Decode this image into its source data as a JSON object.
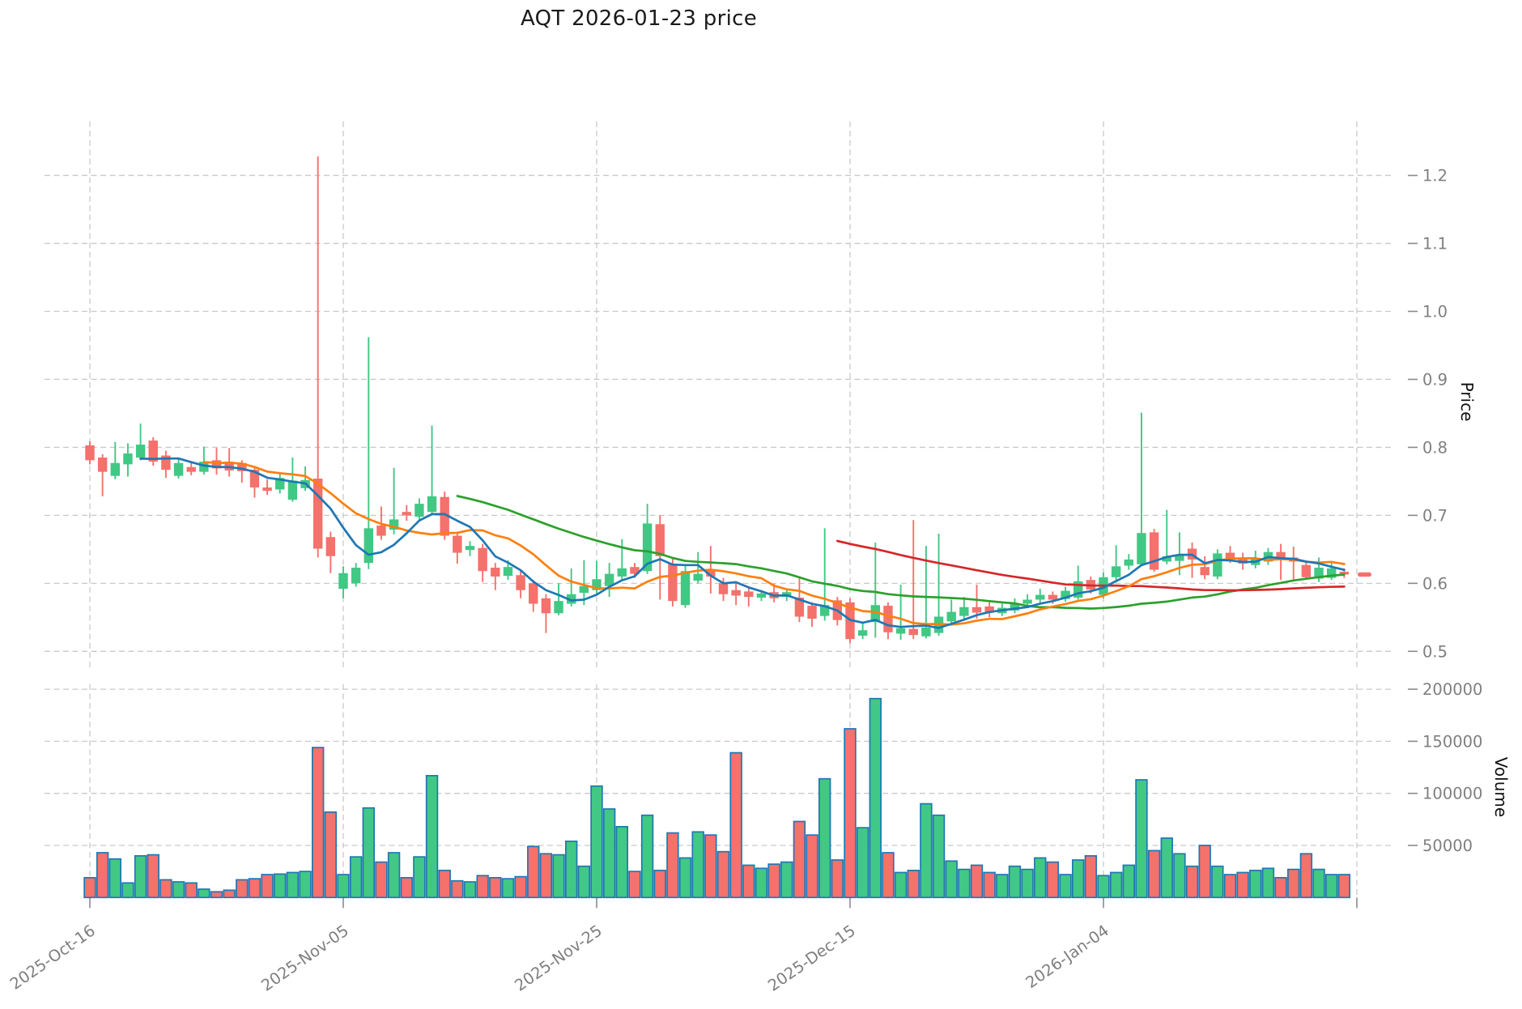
{
  "title": "AQT  2026-01-23  price",
  "chart_data": {
    "type": "candlestick",
    "subtype": "ohlc_with_volume_panel",
    "symbol": "AQT",
    "as_of_date": "2026-01-23",
    "start_date": "2025-10-16",
    "frequency": "daily",
    "x_tick_labels": [
      "2025-Oct-16",
      "2025-Nov-05",
      "2025-Nov-25",
      "2025-Dec-15",
      "2026-Jan-04"
    ],
    "x_tick_indices": [
      0,
      20,
      40,
      60,
      80
    ],
    "x_gridline_indices": [
      0,
      20,
      40,
      60,
      80,
      100
    ],
    "price_axis": {
      "label": "Price",
      "ticks": [
        0.5,
        0.6,
        0.7,
        0.8,
        0.9,
        1.0,
        1.1,
        1.2
      ],
      "tick_labels": [
        "0.5",
        "0.6",
        "0.7",
        "0.8",
        "0.9",
        "1.0",
        "1.1",
        "1.2"
      ],
      "range": [
        0.4765,
        1.279
      ],
      "grid": true
    },
    "volume_axis": {
      "label": "Volume",
      "ticks": [
        50000,
        100000,
        150000,
        200000
      ],
      "tick_labels": [
        "50000",
        "100000",
        "150000",
        "200000"
      ],
      "range": [
        0,
        204500
      ],
      "grid": true
    },
    "moving_averages": [
      {
        "name": "SMA30",
        "period": 30,
        "color": "#2ca02c"
      },
      {
        "name": "SMA60",
        "period": 60,
        "color": "#d62728"
      },
      {
        "name": "SMA10",
        "period": 10,
        "color": "#ff7f0e"
      },
      {
        "name": "SMA5",
        "period": 5,
        "color": "#1f77b4"
      }
    ],
    "last_price_marker": {
      "price": 0.613,
      "color": "#f4716c"
    },
    "colors": {
      "up": "#41c884",
      "down": "#f4716c",
      "volume_border": "#1f77b4",
      "grid": "#c9c9c9",
      "tick_text": "#7f7f7f",
      "title_text": "#1a1a1a"
    },
    "candles_schema": [
      "open",
      "high",
      "low",
      "close",
      "volume"
    ],
    "candles": [
      [
        0.803,
        0.809,
        0.775,
        0.781,
        19000
      ],
      [
        0.785,
        0.79,
        0.728,
        0.764,
        43000
      ],
      [
        0.758,
        0.808,
        0.753,
        0.777,
        37000
      ],
      [
        0.775,
        0.806,
        0.757,
        0.791,
        14000
      ],
      [
        0.785,
        0.835,
        0.781,
        0.804,
        40000
      ],
      [
        0.81,
        0.815,
        0.773,
        0.779,
        41000
      ],
      [
        0.788,
        0.795,
        0.755,
        0.767,
        17000
      ],
      [
        0.758,
        0.782,
        0.754,
        0.777,
        15000
      ],
      [
        0.771,
        0.778,
        0.759,
        0.764,
        14000
      ],
      [
        0.764,
        0.801,
        0.76,
        0.779,
        8000
      ],
      [
        0.781,
        0.799,
        0.76,
        0.769,
        5500
      ],
      [
        0.779,
        0.799,
        0.757,
        0.766,
        7000
      ],
      [
        0.777,
        0.781,
        0.748,
        0.765,
        17000
      ],
      [
        0.767,
        0.772,
        0.726,
        0.741,
        18000
      ],
      [
        0.741,
        0.753,
        0.73,
        0.736,
        22000
      ],
      [
        0.738,
        0.762,
        0.732,
        0.755,
        22500
      ],
      [
        0.723,
        0.785,
        0.72,
        0.751,
        24000
      ],
      [
        0.74,
        0.772,
        0.736,
        0.752,
        25000
      ],
      [
        0.754,
        1.228,
        0.638,
        0.651,
        144000
      ],
      [
        0.668,
        0.676,
        0.615,
        0.64,
        82000
      ],
      [
        0.592,
        0.625,
        0.578,
        0.615,
        22000
      ],
      [
        0.6,
        0.63,
        0.595,
        0.623,
        39000
      ],
      [
        0.63,
        0.962,
        0.621,
        0.681,
        86000
      ],
      [
        0.685,
        0.713,
        0.664,
        0.67,
        34000
      ],
      [
        0.679,
        0.77,
        0.672,
        0.694,
        43000
      ],
      [
        0.705,
        0.715,
        0.692,
        0.7,
        19000
      ],
      [
        0.698,
        0.725,
        0.694,
        0.717,
        39000
      ],
      [
        0.705,
        0.832,
        0.7,
        0.728,
        117000
      ],
      [
        0.727,
        0.735,
        0.664,
        0.67,
        26000
      ],
      [
        0.67,
        0.676,
        0.629,
        0.645,
        16000
      ],
      [
        0.649,
        0.662,
        0.64,
        0.655,
        15000
      ],
      [
        0.652,
        0.658,
        0.602,
        0.618,
        21000
      ],
      [
        0.623,
        0.63,
        0.59,
        0.61,
        19000
      ],
      [
        0.611,
        0.634,
        0.605,
        0.624,
        18000
      ],
      [
        0.612,
        0.618,
        0.578,
        0.59,
        20000
      ],
      [
        0.6,
        0.605,
        0.558,
        0.57,
        49000
      ],
      [
        0.578,
        0.584,
        0.527,
        0.556,
        42000
      ],
      [
        0.556,
        0.6,
        0.553,
        0.574,
        41000
      ],
      [
        0.57,
        0.622,
        0.566,
        0.584,
        54000
      ],
      [
        0.586,
        0.634,
        0.568,
        0.596,
        30000
      ],
      [
        0.59,
        0.633,
        0.585,
        0.606,
        107000
      ],
      [
        0.596,
        0.63,
        0.58,
        0.614,
        85000
      ],
      [
        0.61,
        0.665,
        0.604,
        0.622,
        68000
      ],
      [
        0.624,
        0.63,
        0.608,
        0.614,
        25000
      ],
      [
        0.618,
        0.717,
        0.614,
        0.688,
        79000
      ],
      [
        0.687,
        0.7,
        0.576,
        0.64,
        26000
      ],
      [
        0.629,
        0.636,
        0.566,
        0.574,
        62000
      ],
      [
        0.568,
        0.628,
        0.564,
        0.618,
        38000
      ],
      [
        0.604,
        0.646,
        0.6,
        0.614,
        63000
      ],
      [
        0.62,
        0.655,
        0.585,
        0.61,
        60000
      ],
      [
        0.6,
        0.608,
        0.574,
        0.584,
        44000
      ],
      [
        0.59,
        0.602,
        0.568,
        0.582,
        139000
      ],
      [
        0.588,
        0.595,
        0.566,
        0.58,
        31000
      ],
      [
        0.579,
        0.59,
        0.574,
        0.585,
        28000
      ],
      [
        0.587,
        0.599,
        0.572,
        0.578,
        32000
      ],
      [
        0.58,
        0.592,
        0.574,
        0.587,
        34000
      ],
      [
        0.579,
        0.607,
        0.543,
        0.551,
        73000
      ],
      [
        0.567,
        0.572,
        0.536,
        0.548,
        60000
      ],
      [
        0.552,
        0.681,
        0.545,
        0.568,
        114000
      ],
      [
        0.575,
        0.58,
        0.538,
        0.546,
        36000
      ],
      [
        0.572,
        0.578,
        0.512,
        0.518,
        162000
      ],
      [
        0.523,
        0.542,
        0.518,
        0.531,
        67000
      ],
      [
        0.543,
        0.66,
        0.52,
        0.568,
        191000
      ],
      [
        0.567,
        0.572,
        0.518,
        0.528,
        43000
      ],
      [
        0.526,
        0.598,
        0.517,
        0.534,
        24000
      ],
      [
        0.533,
        0.693,
        0.518,
        0.524,
        26000
      ],
      [
        0.522,
        0.655,
        0.519,
        0.535,
        90000
      ],
      [
        0.527,
        0.673,
        0.523,
        0.551,
        79000
      ],
      [
        0.544,
        0.576,
        0.538,
        0.558,
        35000
      ],
      [
        0.552,
        0.58,
        0.546,
        0.565,
        27000
      ],
      [
        0.565,
        0.598,
        0.548,
        0.557,
        31000
      ],
      [
        0.566,
        0.574,
        0.55,
        0.558,
        24000
      ],
      [
        0.556,
        0.57,
        0.552,
        0.564,
        22000
      ],
      [
        0.56,
        0.578,
        0.556,
        0.57,
        30000
      ],
      [
        0.57,
        0.584,
        0.566,
        0.576,
        27000
      ],
      [
        0.576,
        0.592,
        0.572,
        0.583,
        38000
      ],
      [
        0.583,
        0.588,
        0.57,
        0.576,
        34000
      ],
      [
        0.577,
        0.595,
        0.573,
        0.589,
        22000
      ],
      [
        0.579,
        0.626,
        0.576,
        0.603,
        36000
      ],
      [
        0.605,
        0.61,
        0.585,
        0.591,
        40000
      ],
      [
        0.583,
        0.616,
        0.578,
        0.609,
        21000
      ],
      [
        0.609,
        0.656,
        0.605,
        0.625,
        24000
      ],
      [
        0.626,
        0.643,
        0.62,
        0.635,
        31000
      ],
      [
        0.628,
        0.851,
        0.626,
        0.674,
        113000
      ],
      [
        0.675,
        0.68,
        0.617,
        0.62,
        45000
      ],
      [
        0.632,
        0.708,
        0.628,
        0.64,
        57000
      ],
      [
        0.633,
        0.675,
        0.612,
        0.641,
        42000
      ],
      [
        0.651,
        0.66,
        0.608,
        0.635,
        30000
      ],
      [
        0.624,
        0.64,
        0.606,
        0.612,
        50000
      ],
      [
        0.61,
        0.65,
        0.606,
        0.644,
        30000
      ],
      [
        0.645,
        0.655,
        0.63,
        0.637,
        22000
      ],
      [
        0.637,
        0.645,
        0.62,
        0.629,
        24000
      ],
      [
        0.627,
        0.648,
        0.622,
        0.637,
        26000
      ],
      [
        0.632,
        0.652,
        0.627,
        0.646,
        28000
      ],
      [
        0.646,
        0.658,
        0.605,
        0.636,
        19000
      ],
      [
        0.638,
        0.654,
        0.606,
        0.632,
        27000
      ],
      [
        0.627,
        0.632,
        0.605,
        0.609,
        42000
      ],
      [
        0.607,
        0.638,
        0.602,
        0.623,
        27000
      ],
      [
        0.608,
        0.63,
        0.605,
        0.622,
        22000
      ],
      [
        0.617,
        0.622,
        0.608,
        0.613,
        22000
      ]
    ]
  }
}
